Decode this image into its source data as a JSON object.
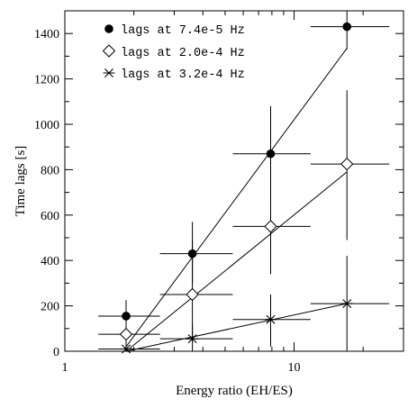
{
  "chart_data": {
    "type": "scatter",
    "title": "",
    "xlabel": "Energy ratio (EH/ES)",
    "ylabel": "Time lags [s]",
    "xscale": "log",
    "xlim": [
      1,
      30
    ],
    "ylim": [
      0,
      1500
    ],
    "x_ticks": [
      1,
      10
    ],
    "x_tick_labels": [
      "1",
      "10"
    ],
    "y_ticks": [
      0,
      200,
      400,
      600,
      800,
      1000,
      1200,
      1400
    ],
    "y_tick_labels": [
      "0",
      "200",
      "400",
      "600",
      "800",
      "1000",
      "1200",
      "1400"
    ],
    "grid": false,
    "legend_position": "top-left",
    "x": [
      1.85,
      3.6,
      7.9,
      17.0
    ],
    "x_err": [
      [
        1.4,
        2.6
      ],
      [
        2.6,
        5.4
      ],
      [
        5.4,
        11.8
      ],
      [
        11.8,
        26.0
      ]
    ],
    "series": [
      {
        "name": "lags at 7.4e-5 Hz",
        "marker": "filled-circle",
        "values": [
          155,
          430,
          870,
          1430
        ],
        "y_err": [
          [
            90,
            225
          ],
          [
            300,
            570
          ],
          [
            660,
            1080
          ],
          [
            1330,
            1500
          ]
        ],
        "fit_line": [
          [
            1.85,
            20
          ],
          [
            17.0,
            1335
          ]
        ]
      },
      {
        "name": "lags at 2.0e-4 Hz",
        "marker": "open-diamond",
        "values": [
          75,
          250,
          550,
          825
        ],
        "y_err": [
          [
            20,
            140
          ],
          [
            40,
            490
          ],
          [
            340,
            1075
          ],
          [
            490,
            1150
          ]
        ],
        "fit_line": [
          [
            1.85,
            0
          ],
          [
            17.0,
            790
          ]
        ]
      },
      {
        "name": "lags at 3.2e-4 Hz",
        "marker": "asterisk",
        "values": [
          10,
          55,
          140,
          210
        ],
        "y_err": [
          [
            0,
            30
          ],
          [
            0,
            120
          ],
          [
            20,
            250
          ],
          [
            0,
            420
          ]
        ],
        "fit_line": [
          [
            1.85,
            0
          ],
          [
            17.0,
            210
          ]
        ]
      }
    ]
  }
}
